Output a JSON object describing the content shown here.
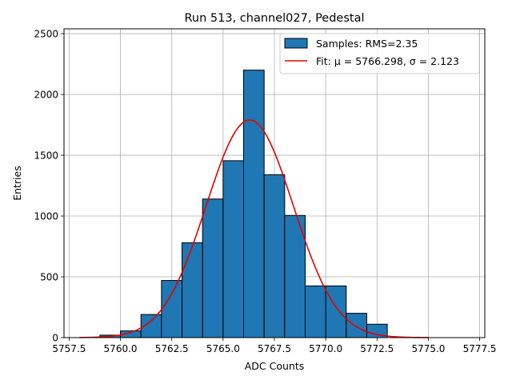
{
  "chart_data": {
    "type": "bar",
    "title": "Run 513, channel027, Pedestal",
    "xlabel": "ADC Counts",
    "ylabel": "Entries",
    "xlim": [
      5757.25,
      5777.75
    ],
    "ylim": [
      0,
      2540
    ],
    "xticks": [
      5757.5,
      5760.0,
      5762.5,
      5765.0,
      5767.5,
      5770.0,
      5772.5,
      5775.0,
      5777.5
    ],
    "xtick_labels": [
      "5757.5",
      "5760.0",
      "5762.5",
      "5765.0",
      "5767.5",
      "5770.0",
      "5772.5",
      "5775.0",
      "5777.5"
    ],
    "yticks": [
      0,
      500,
      1000,
      1500,
      2000,
      2500
    ],
    "ytick_labels": [
      "0",
      "500",
      "1000",
      "1500",
      "2000",
      "2500"
    ],
    "grid": true,
    "legend_position": "top-right",
    "histogram": {
      "name": "Samples: RMS=2.35",
      "color": "#1f77b4",
      "edgecolor": "#000000",
      "bin_edges": [
        5759.0,
        5760.0,
        5761.0,
        5762.0,
        5763.0,
        5764.0,
        5765.0,
        5766.0,
        5767.0,
        5768.0,
        5769.0,
        5770.0,
        5771.0,
        5772.0,
        5773.0,
        5774.0,
        5775.0,
        5776.0,
        5777.0
      ],
      "counts": [
        20,
        55,
        190,
        470,
        780,
        1140,
        1455,
        2200,
        1340,
        1005,
        425,
        425,
        200,
        110,
        0,
        0,
        0,
        0
      ]
    },
    "fit": {
      "name": "Fit: μ = 5766.298, σ = 2.123",
      "color": "#e60000",
      "mu": 5766.298,
      "sigma": 2.123,
      "amplitude": 1790,
      "x_range": [
        5758.0,
        5775.0
      ]
    }
  }
}
